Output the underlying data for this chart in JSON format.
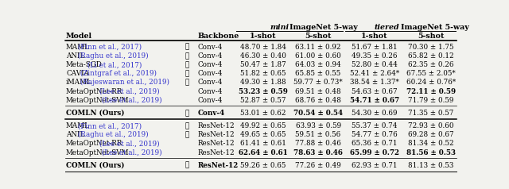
{
  "rows_group1": [
    {
      "model": "MAML",
      "cite": " (Finn et al., 2017)",
      "check": true,
      "backbone": "Conv-4",
      "m1": "48.70 ± 1.84",
      "m5": "63.11 ± 0.92",
      "t1": "51.67 ± 1.81",
      "t5": "70.30 ± 1.75",
      "m1b": false,
      "m5b": false,
      "t1b": false,
      "t5b": false
    },
    {
      "model": "ANIL",
      "cite": " (Raghu et al., 2019)",
      "check": true,
      "backbone": "Conv-4",
      "m1": "46.30 ± 0.40",
      "m5": "61.00 ± 0.60",
      "t1": "49.35 ± 0.26",
      "t5": "65.82 ± 0.12",
      "m1b": false,
      "m5b": false,
      "t1b": false,
      "t5b": false
    },
    {
      "model": "Meta-SGD",
      "cite": " (Li et al., 2017)",
      "check": true,
      "backbone": "Conv-4",
      "m1": "50.47 ± 1.87",
      "m5": "64.03 ± 0.94",
      "t1": "52.80 ± 0.44",
      "t5": "62.35 ± 0.26",
      "m1b": false,
      "m5b": false,
      "t1b": false,
      "t5b": false
    },
    {
      "model": "CAVIA",
      "cite": " (Zintgraf et al., 2019)",
      "check": true,
      "backbone": "Conv-4",
      "m1": "51.82 ± 0.65",
      "m5": "65.85 ± 0.55",
      "t1": "52.41 ± 2.64*",
      "t5": "67.55 ± 2.05*",
      "m1b": false,
      "m5b": false,
      "t1b": false,
      "t5b": false
    },
    {
      "model": "iMAML",
      "cite": " (Rajeswaran et al., 2019)",
      "check": true,
      "backbone": "Conv-4",
      "m1": "49.30 ± 1.88",
      "m5": "59.77 ± 0.73*",
      "t1": "38.54 ± 1.37*",
      "t5": "60.24 ± 0.76*",
      "m1b": false,
      "m5b": false,
      "t1b": false,
      "t5b": false
    },
    {
      "model": "MetaOptNet-RR",
      "cite": " (Lee et al., 2019)",
      "check": false,
      "backbone": "Conv-4",
      "m1": "53.23 ± 0.59",
      "m5": "69.51 ± 0.48",
      "t1": "54.63 ± 0.67",
      "t5": "72.11 ± 0.59",
      "m1b": true,
      "m5b": false,
      "t1b": false,
      "t5b": true
    },
    {
      "model": "MetaOptNet-SVM",
      "cite": " (Lee et al., 2019)",
      "check": false,
      "backbone": "Conv-4",
      "m1": "52.87 ± 0.57",
      "m5": "68.76 ± 0.48",
      "t1": "54.71 ± 0.67",
      "t5": "71.79 ± 0.59",
      "m1b": false,
      "m5b": false,
      "t1b": true,
      "t5b": false
    }
  ],
  "row_comln1": {
    "model": "COMLN (Ours)",
    "cite": "",
    "check": true,
    "backbone": "Conv-4",
    "m1": "53.01 ± 0.62",
    "m5": "70.54 ± 0.54",
    "t1": "54.30 ± 0.69",
    "t5": "71.35 ± 0.57",
    "m1b": false,
    "m5b": true,
    "t1b": false,
    "t5b": false
  },
  "rows_group2": [
    {
      "model": "MAML",
      "cite": " (Finn et al., 2017)",
      "check": true,
      "backbone": "ResNet-12",
      "m1": "49.92 ± 0.65",
      "m5": "63.93 ± 0.59",
      "t1": "55.37 ± 0.74",
      "t5": "72.93 ± 0.60",
      "m1b": false,
      "m5b": false,
      "t1b": false,
      "t5b": false
    },
    {
      "model": "ANIL",
      "cite": " (Raghu et al., 2019)",
      "check": true,
      "backbone": "ResNet-12",
      "m1": "49.65 ± 0.65",
      "m5": "59.51 ± 0.56",
      "t1": "54.77 ± 0.76",
      "t5": "69.28 ± 0.67",
      "m1b": false,
      "m5b": false,
      "t1b": false,
      "t5b": false
    },
    {
      "model": "MetaOptNet-RR",
      "cite": " (Lee et al., 2019)",
      "check": false,
      "backbone": "ResNet-12",
      "m1": "61.41 ± 0.61",
      "m5": "77.88 ± 0.46",
      "t1": "65.36 ± 0.71",
      "t5": "81.34 ± 0.52",
      "m1b": false,
      "m5b": false,
      "t1b": false,
      "t5b": false
    },
    {
      "model": "MetaOptNet-SVM",
      "cite": " (Lee et al., 2019)",
      "check": false,
      "backbone": "ResNet-12",
      "m1": "62.64 ± 0.61",
      "m5": "78.63 ± 0.46",
      "t1": "65.99 ± 0.72",
      "t5": "81.56 ± 0.53",
      "m1b": true,
      "m5b": true,
      "t1b": true,
      "t5b": true
    }
  ],
  "row_comln2": {
    "model": "COMLN (Ours)",
    "cite": "",
    "check": true,
    "backbone": "ResNet-12",
    "m1": "59.26 ± 0.65",
    "m5": "77.26 ± 0.49",
    "t1": "62.93 ± 0.71",
    "t5": "81.13 ± 0.53",
    "m1b": false,
    "m5b": false,
    "t1b": false,
    "t5b": false
  },
  "blue": "#3333cc",
  "black": "#000000",
  "bg": "#f2f2ee",
  "fs": 6.3,
  "hfs": 6.8
}
